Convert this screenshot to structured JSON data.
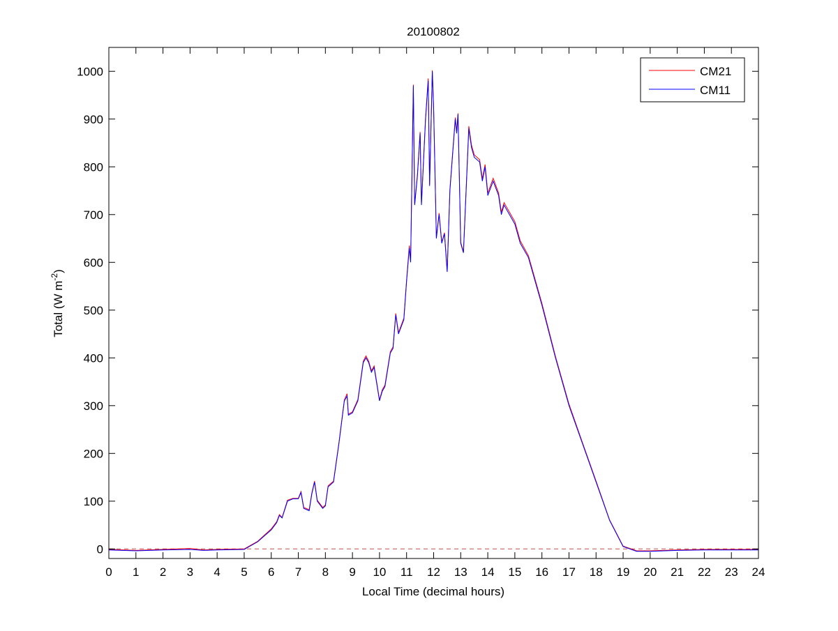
{
  "chart_data": {
    "type": "line",
    "title": "20100802",
    "xlabel": "Local Time (decimal hours)",
    "ylabel_main": "Total (W m",
    "ylabel_sup": "-2",
    "ylabel_close": ")",
    "xlim": [
      0,
      24
    ],
    "ylim": [
      -20,
      1050
    ],
    "xticks": [
      0,
      1,
      2,
      3,
      4,
      5,
      6,
      7,
      8,
      9,
      10,
      11,
      12,
      13,
      14,
      15,
      16,
      17,
      18,
      19,
      20,
      21,
      22,
      23,
      24
    ],
    "yticks": [
      0,
      100,
      200,
      300,
      400,
      500,
      600,
      700,
      800,
      900,
      1000
    ],
    "grid": false,
    "legend_position": "top-right",
    "zero_line": {
      "value": 0,
      "style": "dashed",
      "color": "#c0504d"
    },
    "series": [
      {
        "name": "CM21",
        "color": "#ff0000",
        "offset_note": "nearly identical to CM11, slightly higher",
        "points": [
          [
            0,
            -1
          ],
          [
            1,
            -3
          ],
          [
            2,
            -1
          ],
          [
            3,
            1
          ],
          [
            3.5,
            -2
          ],
          [
            4,
            -1
          ],
          [
            5,
            0
          ],
          [
            5.5,
            16
          ],
          [
            6,
            42
          ],
          [
            6.2,
            57
          ],
          [
            6.3,
            72
          ],
          [
            6.4,
            66
          ],
          [
            6.6,
            102
          ],
          [
            6.8,
            106
          ],
          [
            7,
            106
          ],
          [
            7.1,
            120
          ],
          [
            7.2,
            87
          ],
          [
            7.4,
            82
          ],
          [
            7.5,
            117
          ],
          [
            7.6,
            142
          ],
          [
            7.7,
            102
          ],
          [
            7.9,
            87
          ],
          [
            8,
            92
          ],
          [
            8.1,
            132
          ],
          [
            8.3,
            142
          ],
          [
            8.5,
            222
          ],
          [
            8.7,
            312
          ],
          [
            8.8,
            325
          ],
          [
            8.85,
            282
          ],
          [
            9,
            287
          ],
          [
            9.2,
            313
          ],
          [
            9.4,
            393
          ],
          [
            9.5,
            404
          ],
          [
            9.6,
            393
          ],
          [
            9.7,
            373
          ],
          [
            9.8,
            383
          ],
          [
            10,
            312
          ],
          [
            10.1,
            333
          ],
          [
            10.2,
            343
          ],
          [
            10.4,
            413
          ],
          [
            10.5,
            423
          ],
          [
            10.6,
            493
          ],
          [
            10.7,
            453
          ],
          [
            10.9,
            483
          ],
          [
            11,
            563
          ],
          [
            11.1,
            635
          ],
          [
            11.15,
            603
          ],
          [
            11.25,
            972
          ],
          [
            11.3,
            722
          ],
          [
            11.4,
            783
          ],
          [
            11.5,
            873
          ],
          [
            11.55,
            723
          ],
          [
            11.7,
            903
          ],
          [
            11.8,
            985
          ],
          [
            11.85,
            763
          ],
          [
            11.95,
            1002
          ],
          [
            12,
            922
          ],
          [
            12.1,
            652
          ],
          [
            12.2,
            703
          ],
          [
            12.3,
            642
          ],
          [
            12.4,
            662
          ],
          [
            12.5,
            582
          ],
          [
            12.6,
            753
          ],
          [
            12.8,
            903
          ],
          [
            12.85,
            873
          ],
          [
            12.9,
            912
          ],
          [
            13,
            642
          ],
          [
            13.1,
            622
          ],
          [
            13.3,
            885
          ],
          [
            13.4,
            845
          ],
          [
            13.5,
            825
          ],
          [
            13.7,
            815
          ],
          [
            13.8,
            775
          ],
          [
            13.9,
            805
          ],
          [
            14,
            745
          ],
          [
            14.2,
            776
          ],
          [
            14.4,
            745
          ],
          [
            14.5,
            705
          ],
          [
            14.6,
            725
          ],
          [
            15,
            685
          ],
          [
            15.2,
            645
          ],
          [
            15.5,
            614
          ],
          [
            16,
            514
          ],
          [
            16.5,
            403
          ],
          [
            17,
            303
          ],
          [
            17.5,
            222
          ],
          [
            18,
            142
          ],
          [
            18.5,
            61
          ],
          [
            19,
            6
          ],
          [
            19.5,
            -4
          ],
          [
            20,
            -4
          ],
          [
            21,
            -2
          ],
          [
            22,
            -1
          ],
          [
            23,
            -1
          ],
          [
            24,
            -1
          ]
        ]
      },
      {
        "name": "CM11",
        "color": "#0000ff",
        "points": [
          [
            0,
            -2
          ],
          [
            1,
            -4
          ],
          [
            2,
            -2
          ],
          [
            3,
            -1
          ],
          [
            3.5,
            -3
          ],
          [
            4,
            -2
          ],
          [
            5,
            -1
          ],
          [
            5.5,
            15
          ],
          [
            6,
            40
          ],
          [
            6.2,
            55
          ],
          [
            6.3,
            70
          ],
          [
            6.4,
            65
          ],
          [
            6.6,
            100
          ],
          [
            6.8,
            105
          ],
          [
            7,
            105
          ],
          [
            7.1,
            118
          ],
          [
            7.2,
            85
          ],
          [
            7.4,
            80
          ],
          [
            7.5,
            115
          ],
          [
            7.6,
            140
          ],
          [
            7.7,
            100
          ],
          [
            7.9,
            85
          ],
          [
            8,
            90
          ],
          [
            8.1,
            130
          ],
          [
            8.3,
            140
          ],
          [
            8.5,
            220
          ],
          [
            8.7,
            310
          ],
          [
            8.8,
            320
          ],
          [
            8.85,
            280
          ],
          [
            9,
            285
          ],
          [
            9.2,
            310
          ],
          [
            9.4,
            390
          ],
          [
            9.5,
            400
          ],
          [
            9.6,
            390
          ],
          [
            9.7,
            370
          ],
          [
            9.8,
            380
          ],
          [
            10,
            310
          ],
          [
            10.1,
            330
          ],
          [
            10.2,
            340
          ],
          [
            10.4,
            410
          ],
          [
            10.5,
            420
          ],
          [
            10.6,
            490
          ],
          [
            10.7,
            450
          ],
          [
            10.9,
            480
          ],
          [
            11,
            560
          ],
          [
            11.1,
            630
          ],
          [
            11.15,
            600
          ],
          [
            11.25,
            970
          ],
          [
            11.3,
            720
          ],
          [
            11.4,
            780
          ],
          [
            11.5,
            870
          ],
          [
            11.55,
            720
          ],
          [
            11.7,
            900
          ],
          [
            11.8,
            980
          ],
          [
            11.85,
            760
          ],
          [
            11.95,
            1000
          ],
          [
            12,
            920
          ],
          [
            12.1,
            650
          ],
          [
            12.2,
            700
          ],
          [
            12.3,
            640
          ],
          [
            12.4,
            660
          ],
          [
            12.5,
            580
          ],
          [
            12.6,
            750
          ],
          [
            12.8,
            900
          ],
          [
            12.85,
            870
          ],
          [
            12.9,
            910
          ],
          [
            13,
            640
          ],
          [
            13.1,
            620
          ],
          [
            13.3,
            880
          ],
          [
            13.4,
            840
          ],
          [
            13.5,
            820
          ],
          [
            13.7,
            810
          ],
          [
            13.8,
            770
          ],
          [
            13.9,
            800
          ],
          [
            14,
            740
          ],
          [
            14.2,
            770
          ],
          [
            14.4,
            740
          ],
          [
            14.5,
            700
          ],
          [
            14.6,
            720
          ],
          [
            15,
            680
          ],
          [
            15.2,
            640
          ],
          [
            15.5,
            610
          ],
          [
            16,
            510
          ],
          [
            16.5,
            400
          ],
          [
            17,
            300
          ],
          [
            17.5,
            220
          ],
          [
            18,
            140
          ],
          [
            18.5,
            60
          ],
          [
            19,
            5
          ],
          [
            19.5,
            -5
          ],
          [
            20,
            -5
          ],
          [
            21,
            -3
          ],
          [
            22,
            -2
          ],
          [
            23,
            -2
          ],
          [
            24,
            -2
          ]
        ]
      }
    ]
  }
}
